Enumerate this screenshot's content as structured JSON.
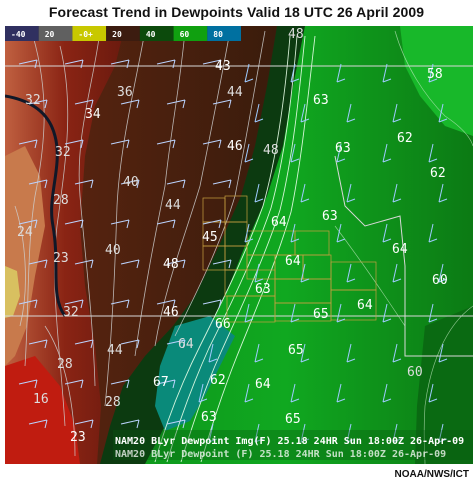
{
  "title": "Forecast Trend in Dewpoints Valid 18 UTC 26 April 2009",
  "credit": "NOAA/NWS/ICT",
  "legend": {
    "labels": [
      "-40",
      "20",
      "-0+",
      "20",
      "40",
      "60",
      "80"
    ],
    "colors": [
      "#303060",
      "#606060",
      "#c8c800",
      "#3c1c10",
      "#0c4a0c",
      "#10a010",
      "#0070a0"
    ]
  },
  "footer": {
    "line1": "NAM20 BLyr Dewpoint Img(F)  25.18  24HR Sun 18:00Z 26-Apr-09",
    "line2": "NAM20 BLyr Dewpoint (F)     25.18  24HR Sun 18:00Z 26-Apr-09"
  },
  "contour_labels": [
    {
      "text": "48",
      "color": "#dddddd"
    },
    {
      "text": "43",
      "color": "#ffffff"
    },
    {
      "text": "44",
      "color": "#dddddd"
    },
    {
      "text": "36",
      "color": "#dddddd"
    },
    {
      "text": "34",
      "color": "#ffffff"
    },
    {
      "text": "32",
      "color": "#dddddd"
    },
    {
      "text": "46",
      "color": "#ffffff"
    },
    {
      "text": "48",
      "color": "#dddddd"
    },
    {
      "text": "40",
      "color": "#dddddd"
    },
    {
      "text": "44",
      "color": "#dddddd"
    },
    {
      "text": "32",
      "color": "#dddddd"
    },
    {
      "text": "28",
      "color": "#dddddd"
    },
    {
      "text": "24",
      "color": "#dddddd"
    },
    {
      "text": "45",
      "color": "#ffffff"
    },
    {
      "text": "48",
      "color": "#ffffff"
    },
    {
      "text": "40",
      "color": "#dddddd"
    },
    {
      "text": "23",
      "color": "#dddddd"
    },
    {
      "text": "46",
      "color": "#ffffff"
    },
    {
      "text": "32",
      "color": "#dddddd"
    },
    {
      "text": "44",
      "color": "#dddddd"
    },
    {
      "text": "28",
      "color": "#dddddd"
    },
    {
      "text": "16",
      "color": "#dddddd"
    },
    {
      "text": "28",
      "color": "#dddddd"
    },
    {
      "text": "23",
      "color": "#ffffff"
    },
    {
      "text": "63",
      "color": "#ffffff"
    },
    {
      "text": "63",
      "color": "#ffffff"
    },
    {
      "text": "64",
      "color": "#ffffff"
    },
    {
      "text": "63",
      "color": "#ffffff"
    },
    {
      "text": "64",
      "color": "#ffffff"
    },
    {
      "text": "63",
      "color": "#ffffff"
    },
    {
      "text": "64",
      "color": "#ffffff"
    },
    {
      "text": "65",
      "color": "#ffffff"
    },
    {
      "text": "66",
      "color": "#ffffff"
    },
    {
      "text": "64",
      "color": "#dddddd"
    },
    {
      "text": "65",
      "color": "#ffffff"
    },
    {
      "text": "67",
      "color": "#ffffff"
    },
    {
      "text": "62",
      "color": "#ffffff"
    },
    {
      "text": "64",
      "color": "#ffffff"
    },
    {
      "text": "63",
      "color": "#ffffff"
    },
    {
      "text": "65",
      "color": "#ffffff"
    },
    {
      "text": "58",
      "color": "#ffffff"
    },
    {
      "text": "62",
      "color": "#ffffff"
    },
    {
      "text": "62",
      "color": "#ffffff"
    },
    {
      "text": "64",
      "color": "#ffffff"
    },
    {
      "text": "60",
      "color": "#ffffff"
    },
    {
      "text": "60",
      "color": "#dddddd"
    }
  ]
}
